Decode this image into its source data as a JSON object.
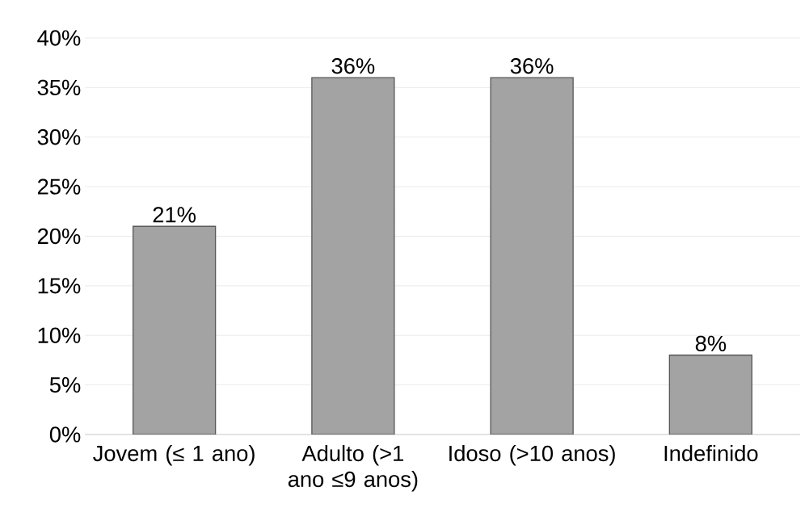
{
  "chart_data": {
    "type": "bar",
    "categories": [
      "Jovem (≤ 1 ano)",
      "Adulto  (>1 ano ≤9 anos)",
      "Idoso (>10 anos)",
      "Indefinido"
    ],
    "values": [
      21,
      36,
      36,
      8
    ],
    "value_labels": [
      "21%",
      "36%",
      "36%",
      "8%"
    ],
    "color": "#a3a3a3",
    "ylim": [
      0,
      40
    ],
    "yticks": [
      {
        "value": 0,
        "label": "0%"
      },
      {
        "value": 5,
        "label": "5%"
      },
      {
        "value": 10,
        "label": "10%"
      },
      {
        "value": 15,
        "label": "15%"
      },
      {
        "value": 20,
        "label": "20%"
      },
      {
        "value": 25,
        "label": "25%"
      },
      {
        "value": 30,
        "label": "30%"
      },
      {
        "value": 35,
        "label": "35%"
      },
      {
        "value": 40,
        "label": "40%"
      }
    ],
    "grid": "y"
  }
}
